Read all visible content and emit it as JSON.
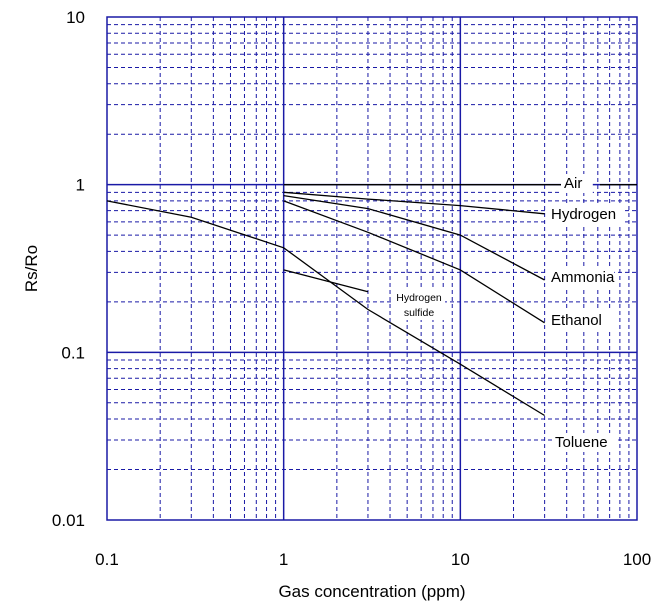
{
  "chart_data": {
    "type": "line",
    "title": "",
    "xlabel": "Gas concentration (ppm)",
    "ylabel": "Rs/Ro",
    "xscale": "log",
    "yscale": "log",
    "xlim": [
      0.1,
      100
    ],
    "ylim": [
      0.01,
      10
    ],
    "x_ticks": [
      "0.1",
      "1",
      "10",
      "100"
    ],
    "y_ticks": [
      "0.01",
      "0.1",
      "1",
      "10"
    ],
    "grid": true,
    "grid_color": "#1a1aa6",
    "line_color": "#000000",
    "series": [
      {
        "name": "Air",
        "x": [
          1,
          100
        ],
        "y": [
          1,
          1
        ]
      },
      {
        "name": "Hydrogen",
        "x": [
          1,
          3,
          10,
          30
        ],
        "y": [
          0.9,
          0.82,
          0.75,
          0.67
        ]
      },
      {
        "name": "Ammonia",
        "x": [
          1,
          3,
          10,
          30
        ],
        "y": [
          0.86,
          0.72,
          0.5,
          0.27
        ]
      },
      {
        "name": "Ethanol",
        "x": [
          1,
          3,
          10,
          30
        ],
        "y": [
          0.8,
          0.52,
          0.31,
          0.15
        ]
      },
      {
        "name": "Toluene",
        "x": [
          0.1,
          0.3,
          1,
          3,
          10,
          30
        ],
        "y": [
          0.8,
          0.64,
          0.42,
          0.18,
          0.085,
          0.042
        ]
      },
      {
        "name": "Hydrogen sulfide",
        "x": [
          1,
          3
        ],
        "y": [
          0.31,
          0.23
        ]
      }
    ],
    "labels": {
      "Air": "Air",
      "Hydrogen": "Hydrogen",
      "Ammonia": "Ammonia",
      "Ethanol": "Ethanol",
      "Toluene": "Toluene",
      "Hydrogen sulfide": [
        "Hydrogen",
        "sulfide"
      ]
    }
  }
}
